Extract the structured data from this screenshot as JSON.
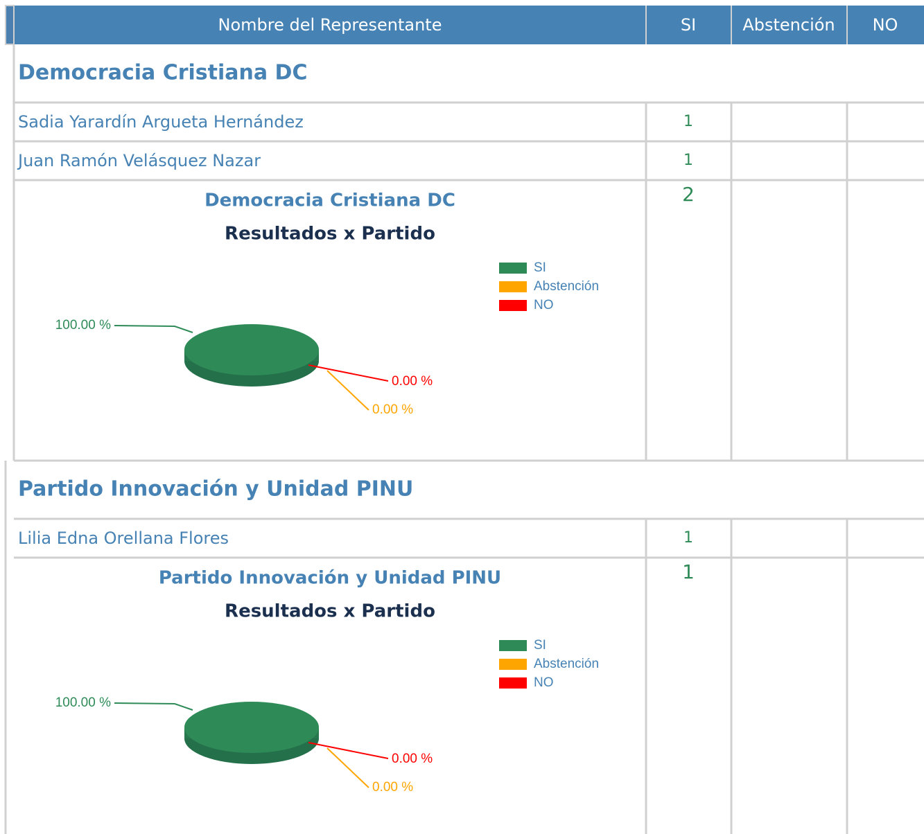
{
  "header": {
    "columns": [
      "Nombre del Representante",
      "SI",
      "Abstención",
      "NO"
    ]
  },
  "parties": [
    {
      "name": "Democracia Cristiana DC",
      "members": [
        {
          "name": "Sadia Yarardín Argueta Hernández",
          "si": 1
        },
        {
          "name": "Juan Ramón Velásquez Nazar",
          "si": 1
        }
      ],
      "total_si": 2,
      "chart_data": {
        "type": "pie",
        "title": "Democracia Cristiana DC",
        "subtitle": "Resultados x Partido",
        "categories": [
          "SI",
          "Abstención",
          "NO"
        ],
        "values": [
          100,
          0,
          0
        ],
        "value_labels": [
          "100.00 %",
          "0.00 %",
          "0.00 %"
        ],
        "colors": [
          "#2e8b57",
          "#ffa500",
          "#ff0000"
        ]
      }
    },
    {
      "name": "Partido Innovación y Unidad PINU",
      "members": [
        {
          "name": "Lilia Edna Orellana Flores",
          "si": 1
        }
      ],
      "total_si": 1,
      "chart_data": {
        "type": "pie",
        "title": "Partido Innovación y Unidad PINU",
        "subtitle": "Resultados x Partido",
        "categories": [
          "SI",
          "Abstención",
          "NO"
        ],
        "values": [
          100,
          0,
          0
        ],
        "value_labels": [
          "100.00 %",
          "0.00 %",
          "0.00 %"
        ],
        "colors": [
          "#2e8b57",
          "#ffa500",
          "#ff0000"
        ]
      }
    }
  ]
}
